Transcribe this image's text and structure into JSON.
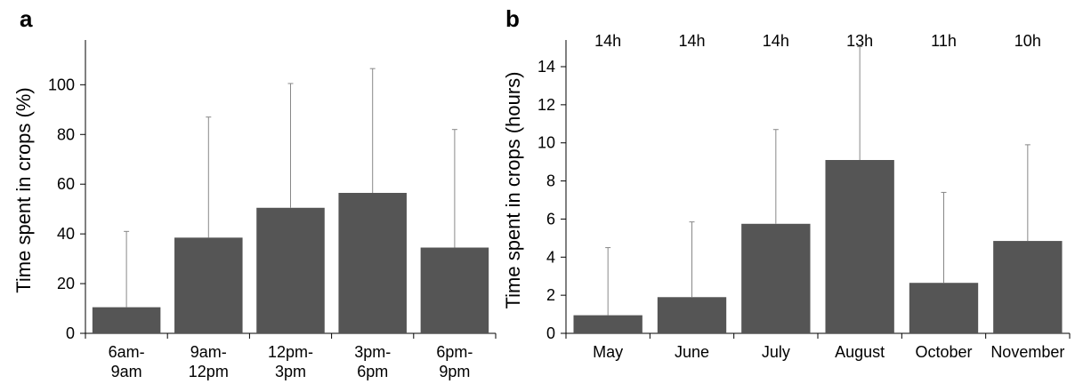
{
  "colors": {
    "bar": "#555555",
    "error_bar": "#888888",
    "axis": "#000000"
  },
  "chart_data": [
    {
      "panel": "a",
      "type": "bar",
      "title": "",
      "xlabel": "",
      "ylabel": "Time spent in crops (%)",
      "ylim": [
        0,
        118
      ],
      "yticks": [
        0,
        20,
        40,
        60,
        80,
        100
      ],
      "categories": [
        [
          "6am-",
          "9am"
        ],
        [
          "9am-",
          "12pm"
        ],
        [
          "12pm-",
          "3pm"
        ],
        [
          "3pm-",
          "6pm"
        ],
        [
          "6pm-",
          "9pm"
        ]
      ],
      "values": [
        10.5,
        38.5,
        50.5,
        56.5,
        34.5
      ],
      "error_upper": [
        41,
        87,
        100.5,
        106.5,
        82
      ],
      "grid": false,
      "legend": "none"
    },
    {
      "panel": "b",
      "type": "bar",
      "title": "",
      "xlabel": "",
      "ylabel": "Time spent in crops (hours)",
      "ylim": [
        0,
        15.4
      ],
      "yticks": [
        0,
        2,
        4,
        6,
        8,
        10,
        12,
        14
      ],
      "categories": [
        [
          "May"
        ],
        [
          "June"
        ],
        [
          "July"
        ],
        [
          "August"
        ],
        [
          "October"
        ],
        [
          "November"
        ]
      ],
      "values": [
        0.95,
        1.9,
        5.75,
        9.1,
        2.65,
        4.85
      ],
      "error_upper": [
        4.5,
        5.85,
        10.7,
        15.05,
        7.4,
        9.9
      ],
      "top_labels": [
        "14h",
        "14h",
        "14h",
        "13h",
        "11h",
        "10h"
      ],
      "grid": false,
      "legend": "none"
    }
  ]
}
